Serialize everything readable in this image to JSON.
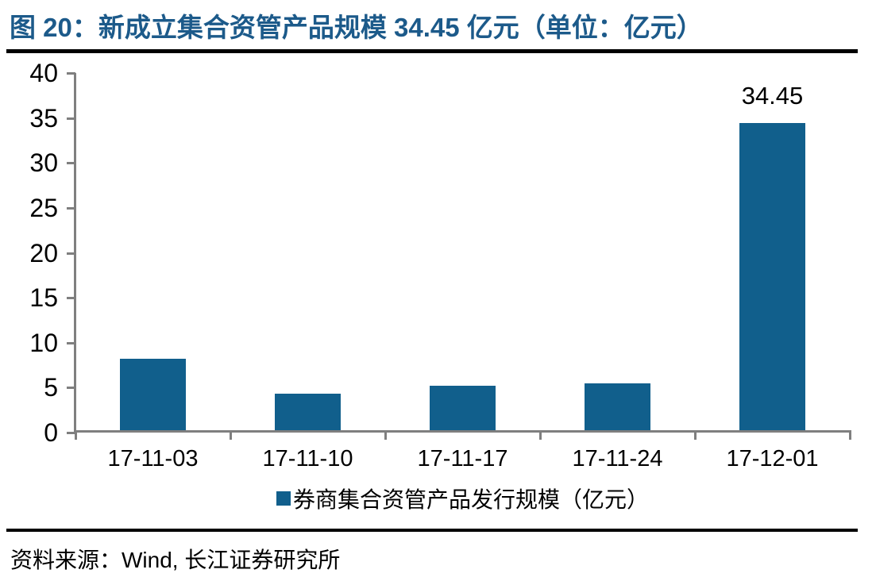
{
  "page": {
    "title": "图 20：新成立集合资管产品规模 34.45 亿元（单位：亿元）",
    "source": "资料来源：Wind, 长江证券研究所"
  },
  "colors": {
    "title": "#1C5A8A",
    "bar": "#115F8C",
    "axis": "#7F7F7F",
    "rule": "#000000",
    "text": "#000000",
    "background": "#FFFFFF"
  },
  "legend": {
    "marker": "square-icon",
    "label": "券商集合资管产品发行规模（亿元）"
  },
  "chart_data": {
    "type": "bar",
    "title": "图 20：新成立集合资管产品规模 34.45 亿元（单位：亿元）",
    "categories": [
      "17-11-03",
      "17-11-10",
      "17-11-17",
      "17-11-24",
      "17-12-01"
    ],
    "values": [
      8.2,
      4.3,
      5.2,
      5.5,
      34.45
    ],
    "bar_labels": [
      "",
      "",
      "",
      "",
      "34.45"
    ],
    "series_name": "券商集合资管产品发行规模（亿元）",
    "unit": "亿元",
    "xlabel": "",
    "ylabel": "",
    "ylim": [
      0,
      40
    ],
    "yticks": [
      0,
      5,
      10,
      15,
      20,
      25,
      30,
      35,
      40
    ],
    "grid": false,
    "legend_position": "bottom"
  }
}
